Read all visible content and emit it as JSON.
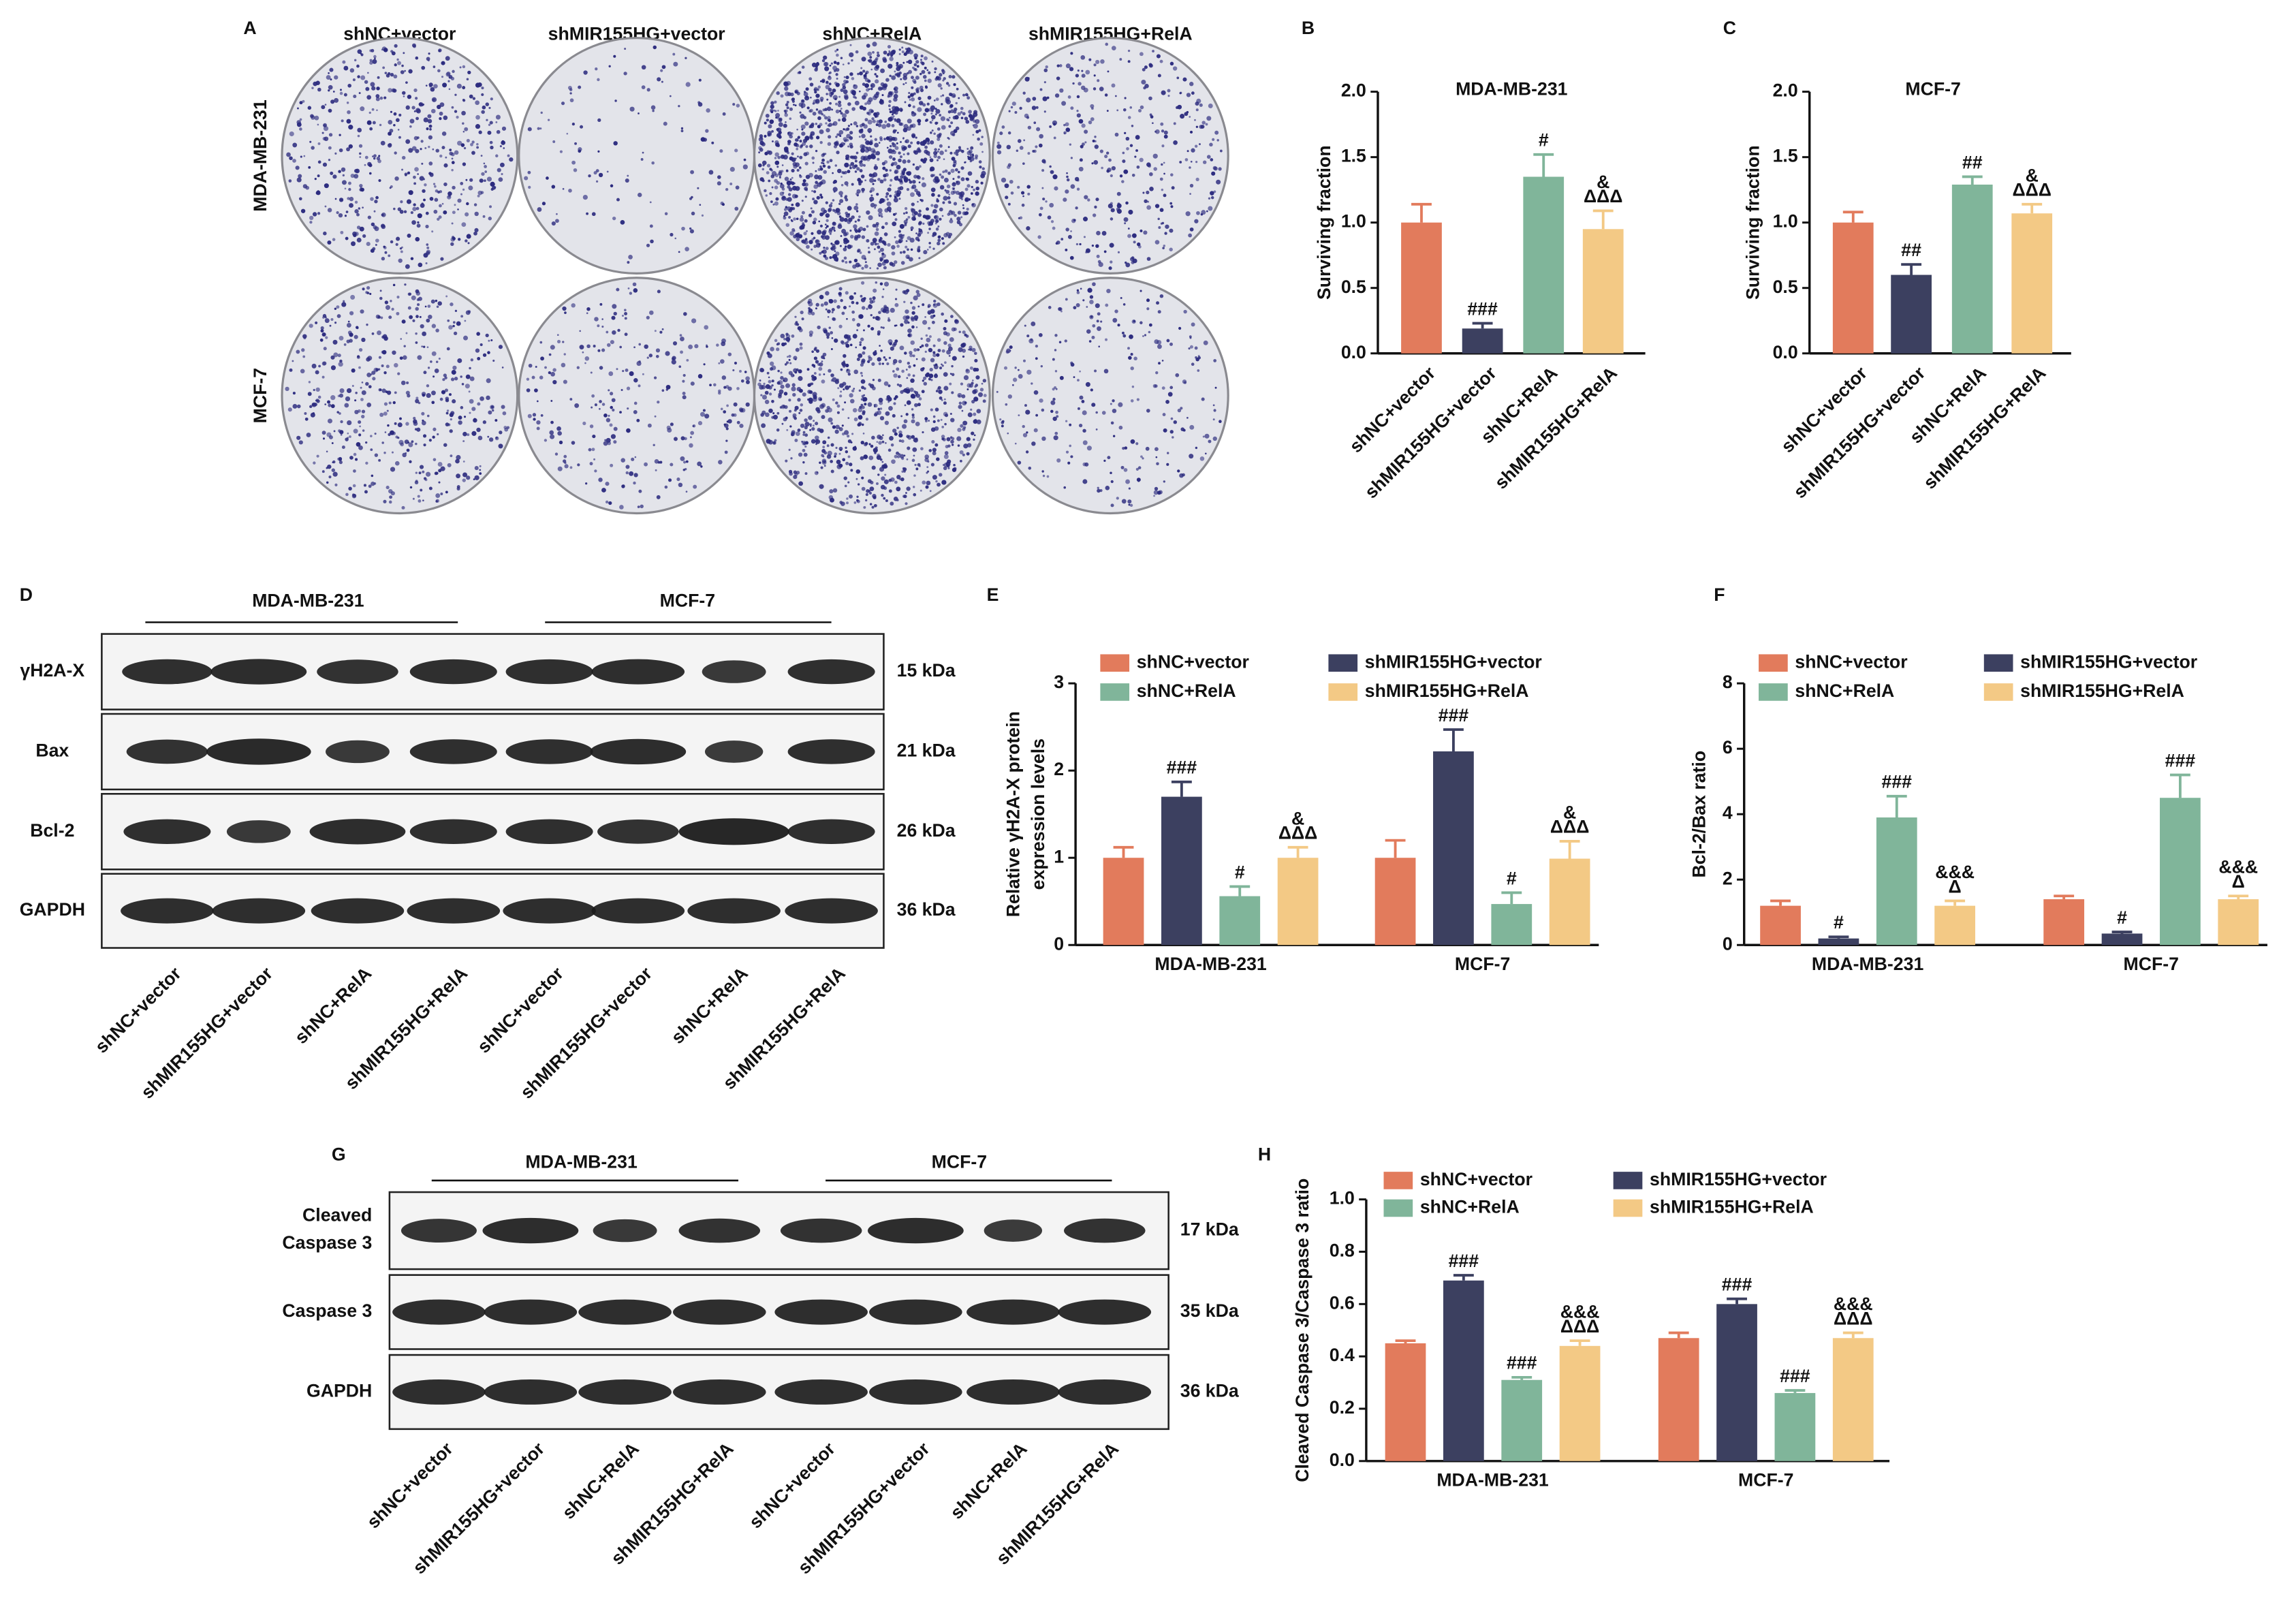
{
  "colony_assay": {
    "panel_label": "A",
    "columns": [
      "shNC+vector",
      "shMIR155HG+vector",
      "shNC+RelA",
      "shMIR155HG+RelA"
    ],
    "rows": [
      "MDA-MB-231",
      "MCF-7"
    ]
  },
  "western_blots": [
    {
      "panel_label": "D",
      "groups": [
        "MDA-MB-231",
        "MCF-7"
      ],
      "rows": [
        {
          "name": "γH2A-X",
          "size": "15 kDa"
        },
        {
          "name": "Bax",
          "size": "21 kDa"
        },
        {
          "name": "Bcl-2",
          "size": "26 kDa"
        },
        {
          "name": "GAPDH",
          "size": "36 kDa"
        }
      ],
      "lanes": [
        "shNC+vector",
        "shMIR155HG+vector",
        "shNC+RelA",
        "shMIR155HG+RelA",
        "shNC+vector",
        "shMIR155HG+vector",
        "shNC+RelA",
        "shMIR155HG+RelA"
      ]
    },
    {
      "panel_label": "G",
      "groups": [
        "MDA-MB-231",
        "MCF-7"
      ],
      "rows": [
        {
          "name": [
            "Cleaved",
            "Caspase 3"
          ],
          "size": "17 kDa"
        },
        {
          "name": "Caspase 3",
          "size": "35 kDa"
        },
        {
          "name": "GAPDH",
          "size": "36 kDa"
        }
      ],
      "lanes": [
        "shNC+vector",
        "shMIR155HG+vector",
        "shNC+RelA",
        "shMIR155HG+RelA",
        "shNC+vector",
        "shMIR155HG+vector",
        "shNC+RelA",
        "shMIR155HG+RelA"
      ]
    }
  ],
  "chart_data": [
    {
      "type": "bar",
      "panel_label": "B",
      "title": "MDA-MB-231",
      "y_label": "Surviving fraction",
      "categories": [
        "shNC+vector",
        "shMIR155HG+vector",
        "shNC+RelA",
        "shMIR155HG+RelA"
      ],
      "values": [
        1.0,
        0.19,
        1.35,
        0.95
      ],
      "errors": [
        0.14,
        0.04,
        0.17,
        0.14
      ],
      "colors": [
        "#e27b5c",
        "#3c4060",
        "#80b59a",
        "#f3c985"
      ],
      "annotations": [
        null,
        "###",
        "#",
        [
          "&",
          "ΔΔΔ"
        ]
      ],
      "ylim": [
        0,
        2
      ],
      "yticks": [
        {
          "value": 0,
          "label": "0.0"
        },
        0.5,
        {
          "value": 1,
          "label": "1.0"
        },
        1.5,
        {
          "value": 2,
          "label": "2.0"
        }
      ]
    },
    {
      "type": "bar",
      "panel_label": "C",
      "title": "MCF-7",
      "y_label": "Surviving fraction",
      "categories": [
        "shNC+vector",
        "shMIR155HG+vector",
        "shNC+RelA",
        "shMIR155HG+RelA"
      ],
      "values": [
        1.0,
        0.6,
        1.29,
        1.07
      ],
      "errors": [
        0.08,
        0.08,
        0.06,
        0.07
      ],
      "colors": [
        "#e27b5c",
        "#3c4060",
        "#80b59a",
        "#f3c985"
      ],
      "annotations": [
        null,
        "##",
        "##",
        [
          "&",
          "ΔΔΔ"
        ]
      ],
      "ylim": [
        0,
        2
      ],
      "yticks": [
        {
          "value": 0,
          "label": "0.0"
        },
        0.5,
        {
          "value": 1,
          "label": "1.0"
        },
        1.5,
        {
          "value": 2,
          "label": "2.0"
        }
      ]
    },
    {
      "type": "bar",
      "panel_label": "E",
      "y_label": [
        "Relative γH2A-X protein",
        "expression levels"
      ],
      "categories": [
        "MDA-MB-231",
        "MCF-7"
      ],
      "series": [
        {
          "name": "shNC+vector",
          "color": "#e27b5c",
          "values": [
            1.0,
            1.0
          ],
          "errors": [
            0.12,
            0.2
          ],
          "annotations": [
            null,
            null
          ]
        },
        {
          "name": "shMIR155HG+vector",
          "color": "#3c4060",
          "values": [
            1.7,
            2.22
          ],
          "errors": [
            0.17,
            0.25
          ],
          "annotations": [
            "###",
            "###"
          ]
        },
        {
          "name": "shNC+RelA",
          "color": "#80b59a",
          "values": [
            0.56,
            0.47
          ],
          "errors": [
            0.11,
            0.13
          ],
          "annotations": [
            "#",
            "#"
          ]
        },
        {
          "name": "shMIR155HG+RelA",
          "color": "#f3c985",
          "values": [
            1.0,
            0.99
          ],
          "errors": [
            0.12,
            0.2
          ],
          "annotations": [
            [
              "&",
              "ΔΔΔ"
            ],
            [
              "&",
              "ΔΔΔ"
            ]
          ]
        }
      ],
      "ylim": [
        0,
        3
      ],
      "yticks": [
        0,
        1,
        2,
        3
      ]
    },
    {
      "type": "bar",
      "panel_label": "F",
      "y_label": "Bcl-2/Bax ratio",
      "categories": [
        "MDA-MB-231",
        "MCF-7"
      ],
      "series": [
        {
          "name": "shNC+vector",
          "color": "#e27b5c",
          "values": [
            1.2,
            1.4
          ],
          "errors": [
            0.15,
            0.1
          ],
          "annotations": [
            null,
            null
          ]
        },
        {
          "name": "shMIR155HG+vector",
          "color": "#3c4060",
          "values": [
            0.2,
            0.35
          ],
          "errors": [
            0.05,
            0.05
          ],
          "annotations": [
            "#",
            "#"
          ]
        },
        {
          "name": "shNC+RelA",
          "color": "#80b59a",
          "values": [
            3.9,
            4.5
          ],
          "errors": [
            0.65,
            0.7
          ],
          "annotations": [
            "###",
            "###"
          ]
        },
        {
          "name": "shMIR155HG+RelA",
          "color": "#f3c985",
          "values": [
            1.2,
            1.4
          ],
          "errors": [
            0.15,
            0.1
          ],
          "annotations": [
            [
              "&&&",
              "Δ"
            ],
            [
              "&&&",
              "Δ"
            ]
          ]
        }
      ],
      "ylim": [
        0,
        8
      ],
      "yticks": [
        0,
        2,
        4,
        6,
        8
      ]
    },
    {
      "type": "bar",
      "panel_label": "H",
      "y_label": "Cleaved Caspase 3/Caspase 3 ratio",
      "categories": [
        "MDA-MB-231",
        "MCF-7"
      ],
      "series": [
        {
          "name": "shNC+vector",
          "color": "#e27b5c",
          "values": [
            0.45,
            0.47
          ],
          "errors": [
            0.01,
            0.02
          ],
          "annotations": [
            null,
            null
          ]
        },
        {
          "name": "shMIR155HG+vector",
          "color": "#3c4060",
          "values": [
            0.69,
            0.6
          ],
          "errors": [
            0.02,
            0.02
          ],
          "annotations": [
            "###",
            "###"
          ]
        },
        {
          "name": "shNC+RelA",
          "color": "#80b59a",
          "values": [
            0.31,
            0.26
          ],
          "errors": [
            0.01,
            0.01
          ],
          "annotations": [
            "###",
            "###"
          ]
        },
        {
          "name": "shMIR155HG+RelA",
          "color": "#f3c985",
          "values": [
            0.44,
            0.47
          ],
          "errors": [
            0.02,
            0.02
          ],
          "annotations": [
            [
              "&&&",
              "ΔΔΔ"
            ],
            [
              "&&&",
              "ΔΔΔ"
            ]
          ]
        }
      ],
      "ylim": [
        0,
        1
      ],
      "yticks": [
        {
          "value": 0,
          "label": "0.0"
        },
        0.2,
        0.4,
        0.6,
        0.8,
        {
          "value": 1,
          "label": "1.0"
        }
      ]
    }
  ]
}
